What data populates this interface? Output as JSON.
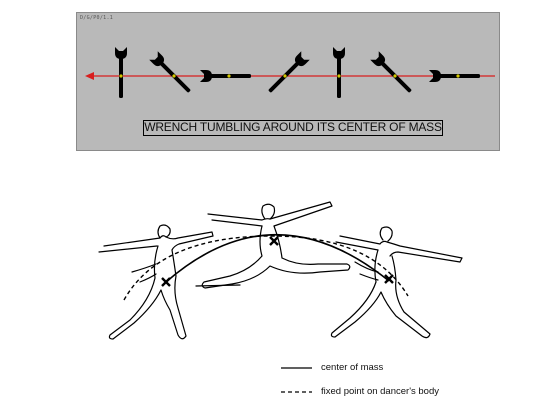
{
  "wrench_panel": {
    "id_text": "D/G/P0/1.1",
    "title": "WRENCH TUMBLING AROUND ITS CENTER OF MASS",
    "background_color": "#b9b9b9",
    "path_color": "#d81e1e",
    "marker_color": "#d4c800",
    "wrench_orientations_deg": [
      90,
      135,
      180,
      45,
      90,
      135,
      180
    ]
  },
  "dancer_figure": {
    "legend": [
      {
        "line_style": "solid",
        "label": "center of mass"
      },
      {
        "line_style": "dashed",
        "label": "fixed point on dancer's body"
      }
    ]
  }
}
